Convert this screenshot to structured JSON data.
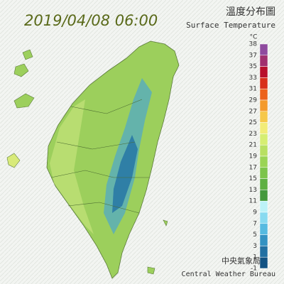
{
  "title": {
    "datetime": "2019/04/08 06:00",
    "name_zh": "溫度分布圖",
    "name_en": "Surface Temperature"
  },
  "legend": {
    "unit": "°C",
    "labels": [
      38,
      37,
      35,
      33,
      31,
      29,
      27,
      25,
      23,
      21,
      19,
      17,
      15,
      13,
      11,
      9,
      7,
      5,
      3,
      1,
      -1
    ],
    "colors": [
      "#8e4a9e",
      "#a0306e",
      "#b8102c",
      "#d8301c",
      "#ec621c",
      "#f49a2c",
      "#f6c84a",
      "#f2ec78",
      "#d6ee72",
      "#b8e062",
      "#9ad454",
      "#7cc44a",
      "#5eb042",
      "#44983c",
      "#bcf2f8",
      "#88daf0",
      "#56bae0",
      "#3492c2",
      "#2270a2",
      "#125282"
    ]
  },
  "credit": {
    "zh": "中央氣象局製",
    "en": "Central Weather Bureau"
  }
}
